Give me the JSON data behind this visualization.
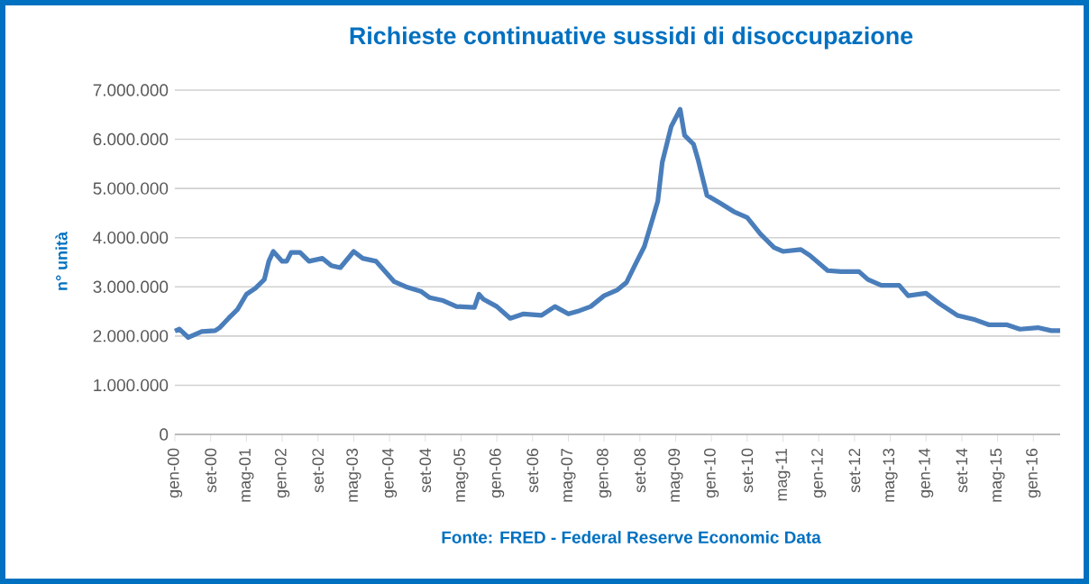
{
  "chart_data": {
    "type": "line",
    "title": "Richieste continuative sussidi di disoccupazione",
    "ylabel": "n° unità",
    "annotations": [
      "Fonte: FRED  - Federal Reserve Economic  Data"
    ],
    "x": [
      "2000-01",
      "2000-02",
      "2000-04",
      "2000-07",
      "2000-10",
      "2000-11",
      "2001-01",
      "2001-03",
      "2001-05",
      "2001-07",
      "2001-09",
      "2001-10",
      "2001-11",
      "2002-01",
      "2002-02",
      "2002-03",
      "2002-05",
      "2002-07",
      "2002-10",
      "2002-12",
      "2003-02",
      "2003-05",
      "2003-07",
      "2003-10",
      "2004-02",
      "2004-05",
      "2004-08",
      "2004-10",
      "2005-01",
      "2005-04",
      "2005-08",
      "2005-09",
      "2005-10",
      "2006-01",
      "2006-04",
      "2006-07",
      "2006-11",
      "2007-02",
      "2007-05",
      "2007-07",
      "2007-10",
      "2008-01",
      "2008-04",
      "2008-06",
      "2008-08",
      "2008-10",
      "2008-12",
      "2009-01",
      "2009-02",
      "2009-04",
      "2009-06",
      "2009-07",
      "2009-09",
      "2009-10",
      "2009-12",
      "2010-03",
      "2010-06",
      "2010-09",
      "2010-12",
      "2011-03",
      "2011-05",
      "2011-09",
      "2011-11",
      "2012-03",
      "2012-06",
      "2012-10",
      "2012-12",
      "2013-03",
      "2013-07",
      "2013-09",
      "2014-01",
      "2014-04",
      "2014-08",
      "2014-12",
      "2015-03",
      "2015-07",
      "2015-10",
      "2016-02",
      "2016-05",
      "2016-07"
    ],
    "series": [
      {
        "color": "#4a7ebb",
        "values": [
          2100000,
          2140000,
          1970000,
          2090000,
          2110000,
          2170000,
          2360000,
          2540000,
          2850000,
          2970000,
          3150000,
          3520000,
          3720000,
          3520000,
          3520000,
          3700000,
          3700000,
          3520000,
          3580000,
          3430000,
          3390000,
          3720000,
          3580000,
          3520000,
          3110000,
          2990000,
          2910000,
          2780000,
          2720000,
          2600000,
          2580000,
          2850000,
          2750000,
          2600000,
          2360000,
          2450000,
          2420000,
          2600000,
          2450000,
          2500000,
          2600000,
          2820000,
          2940000,
          3090000,
          3460000,
          3820000,
          4430000,
          4740000,
          5530000,
          6260000,
          6610000,
          6080000,
          5900000,
          5590000,
          4860000,
          4700000,
          4530000,
          4410000,
          4070000,
          3800000,
          3720000,
          3760000,
          3640000,
          3330000,
          3310000,
          3310000,
          3150000,
          3030000,
          3030000,
          2820000,
          2870000,
          2660000,
          2420000,
          2330000,
          2230000,
          2230000,
          2140000,
          2170000,
          2110000,
          2110000
        ]
      }
    ],
    "xlim": [
      "2000-01",
      "2016-07"
    ],
    "xticks": [
      {
        "value": "2000-01",
        "label": "gen-00"
      },
      {
        "value": "2000-09",
        "label": "set-00"
      },
      {
        "value": "2001-05",
        "label": "mag-01"
      },
      {
        "value": "2002-01",
        "label": "gen-02"
      },
      {
        "value": "2002-09",
        "label": "set-02"
      },
      {
        "value": "2003-05",
        "label": "mag-03"
      },
      {
        "value": "2004-01",
        "label": "gen-04"
      },
      {
        "value": "2004-09",
        "label": "set-04"
      },
      {
        "value": "2005-05",
        "label": "mag-05"
      },
      {
        "value": "2006-01",
        "label": "gen-06"
      },
      {
        "value": "2006-09",
        "label": "set-06"
      },
      {
        "value": "2007-05",
        "label": "mag-07"
      },
      {
        "value": "2008-01",
        "label": "gen-08"
      },
      {
        "value": "2008-09",
        "label": "set-08"
      },
      {
        "value": "2009-05",
        "label": "mag-09"
      },
      {
        "value": "2010-01",
        "label": "gen-10"
      },
      {
        "value": "2010-09",
        "label": "set-10"
      },
      {
        "value": "2011-05",
        "label": "mag-11"
      },
      {
        "value": "2012-01",
        "label": "gen-12"
      },
      {
        "value": "2012-09",
        "label": "set-12"
      },
      {
        "value": "2013-05",
        "label": "mag-13"
      },
      {
        "value": "2014-01",
        "label": "gen-14"
      },
      {
        "value": "2014-09",
        "label": "set-14"
      },
      {
        "value": "2015-05",
        "label": "mag-15"
      },
      {
        "value": "2016-01",
        "label": "gen-16"
      }
    ],
    "ylim": [
      0,
      7000000
    ],
    "yticks": [
      0,
      {
        "value": 1000000,
        "label": "1.000.000"
      },
      {
        "value": 2000000,
        "label": "2.000.000"
      },
      {
        "value": 3000000,
        "label": "3.000.000"
      },
      {
        "value": 4000000,
        "label": "4.000.000"
      },
      {
        "value": 5000000,
        "label": "5.000.000"
      },
      {
        "value": 6000000,
        "label": "6.000.000"
      },
      {
        "value": 7000000,
        "label": "7.000.000"
      }
    ],
    "grid": "y"
  }
}
